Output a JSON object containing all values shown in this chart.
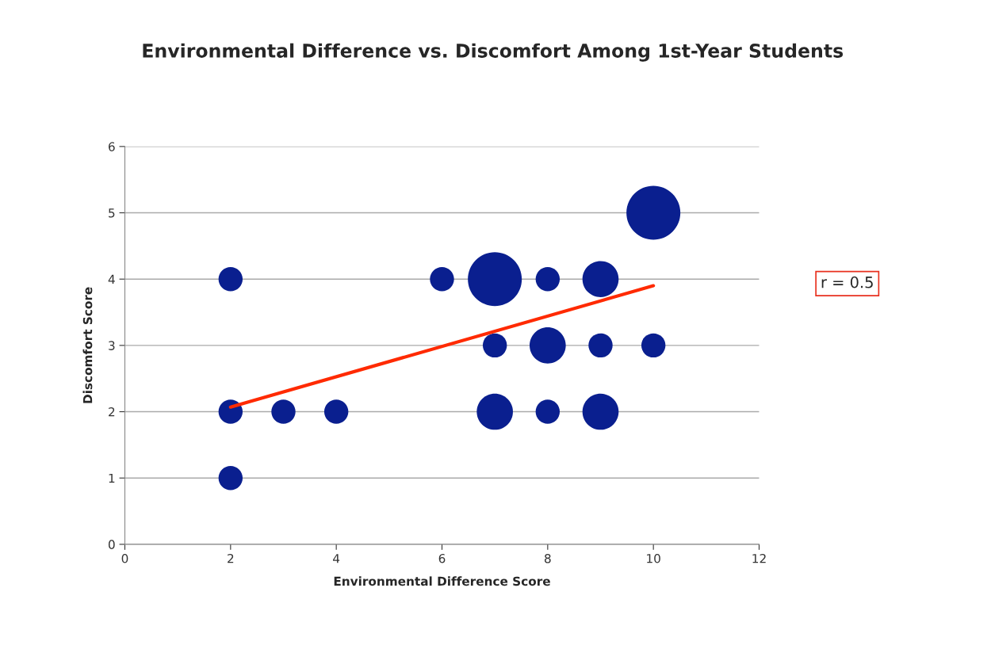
{
  "chart_data": {
    "type": "bubble",
    "title": "Environmental Difference vs. Discomfort Among 1st-Year Students",
    "xlabel": "Environmental Difference Score",
    "ylabel": "Discomfort Score",
    "series": [
      {
        "color": "#0a1f8f",
        "x": [
          2,
          6,
          7,
          8,
          9,
          10,
          7,
          8,
          9,
          10,
          2,
          3,
          4,
          7,
          8,
          9,
          2
        ],
        "values": [
          4,
          4,
          4,
          4,
          4,
          5,
          3,
          3,
          3,
          3,
          2,
          2,
          2,
          2,
          2,
          2,
          1
        ],
        "sizes": [
          0.2,
          0.2,
          1,
          0.2,
          0.45,
          1,
          0.2,
          0.45,
          0.2,
          0.2,
          0.2,
          0.2,
          0.2,
          0.45,
          0.2,
          0.45,
          0.2
        ]
      },
      {
        "type": "line",
        "color": "#ff2a00",
        "x": [
          2,
          10
        ],
        "values": [
          2.07,
          3.9
        ]
      }
    ],
    "xlim": [
      0,
      12
    ],
    "xticks": [
      0,
      2,
      4,
      6,
      8,
      10,
      12
    ],
    "ylim": [
      0,
      6
    ],
    "yticks": [
      0,
      1,
      2,
      3,
      4,
      5,
      6
    ],
    "grid": "y",
    "annotations": [
      "r = 0.5"
    ]
  }
}
